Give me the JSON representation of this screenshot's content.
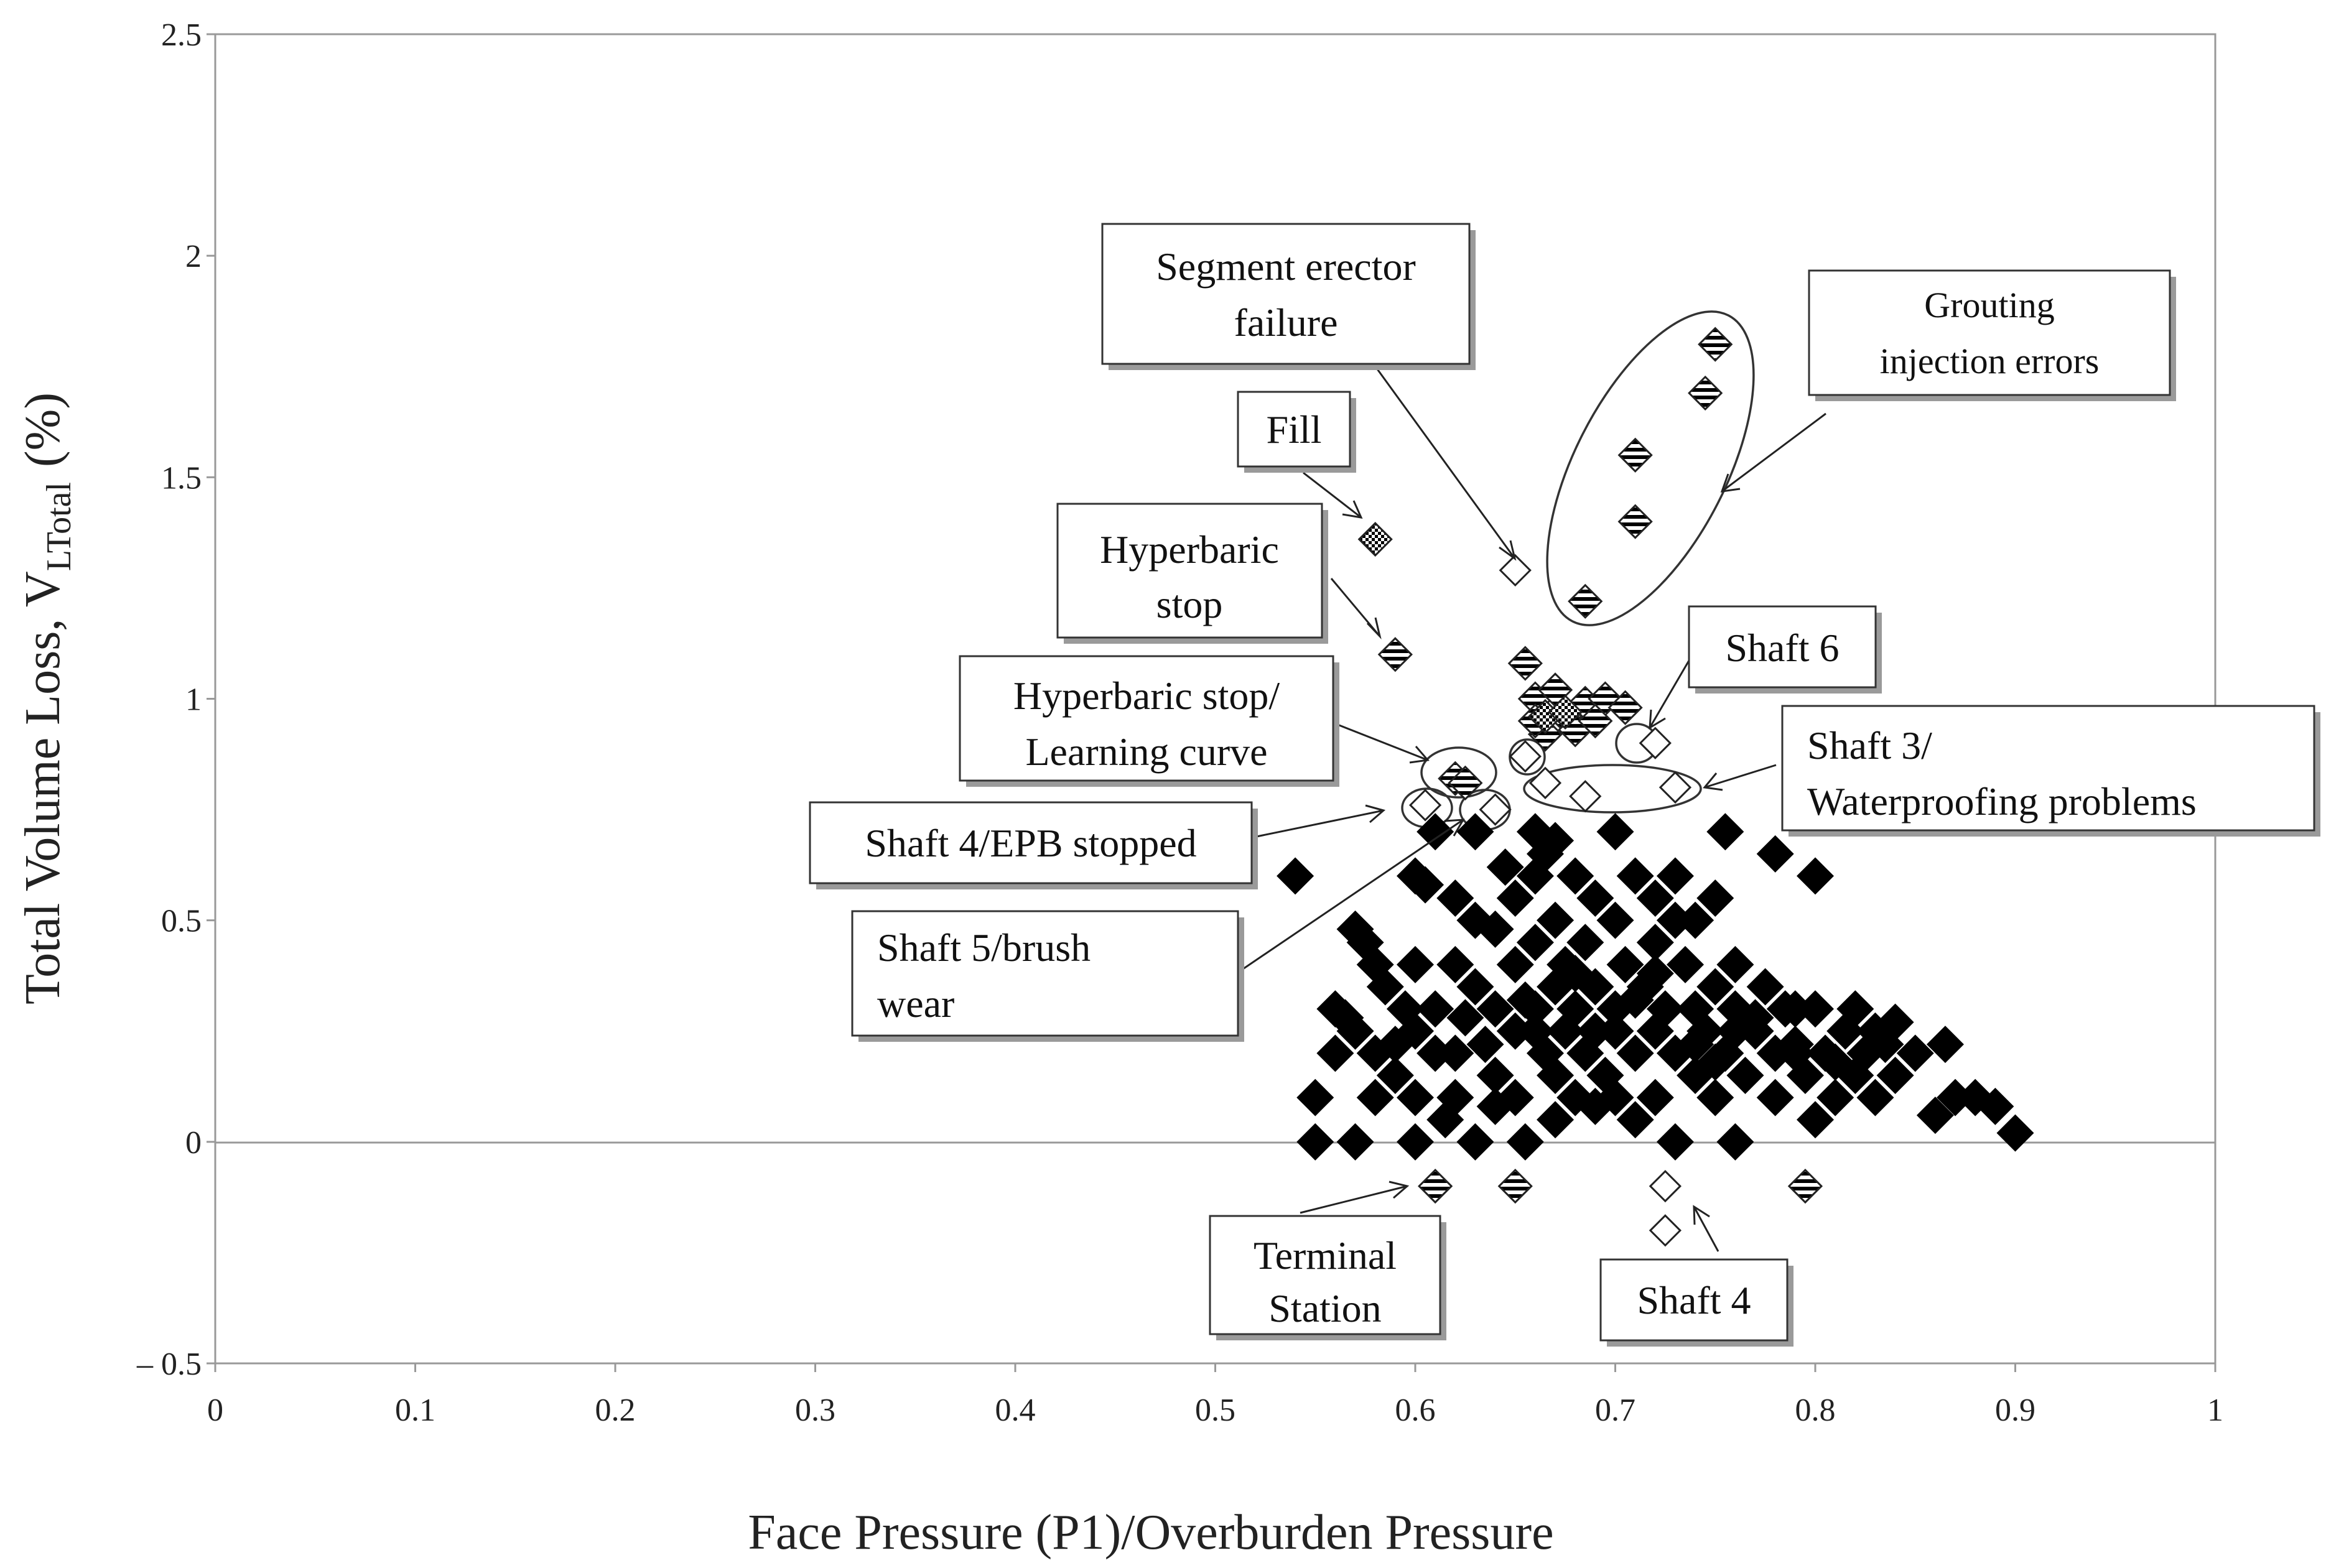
{
  "chart_data": {
    "type": "scatter",
    "xlabel": "Face Pressure (P1)/Overburden Pressure",
    "ylabel_main": "Total Volume Loss, V",
    "ylabel_sub": "LTotal",
    "ylabel_unit": "(%)",
    "xlim": [
      0,
      1
    ],
    "ylim": [
      -0.5,
      2.5
    ],
    "x_ticks": [
      "0",
      "0.1",
      "0.2",
      "0.3",
      "0.4",
      "0.5",
      "0.6",
      "0.7",
      "0.8",
      "0.9",
      "1"
    ],
    "y_ticks": [
      "2.5",
      "2",
      "1.5",
      "1",
      "0.5",
      "0",
      "– 0.5"
    ],
    "y_tick_values": [
      2.5,
      2,
      1.5,
      1,
      0.5,
      0,
      -0.5
    ],
    "grid": false,
    "colors": {
      "filled": "#000000",
      "outline": "#222222"
    },
    "series": [
      {
        "marker": "filled-diamond",
        "points": [
          [
            0.54,
            0.6
          ],
          [
            0.55,
            0.1
          ],
          [
            0.55,
            0.0
          ],
          [
            0.56,
            0.3
          ],
          [
            0.565,
            0.28
          ],
          [
            0.57,
            0.25
          ],
          [
            0.57,
            0.48
          ],
          [
            0.575,
            0.45
          ],
          [
            0.58,
            0.4
          ],
          [
            0.58,
            0.2
          ],
          [
            0.58,
            0.1
          ],
          [
            0.57,
            0.0
          ],
          [
            0.585,
            0.35
          ],
          [
            0.59,
            0.15
          ],
          [
            0.59,
            0.22
          ],
          [
            0.595,
            0.3
          ],
          [
            0.6,
            0.25
          ],
          [
            0.6,
            0.6
          ],
          [
            0.6,
            0.1
          ],
          [
            0.605,
            0.58
          ],
          [
            0.61,
            0.7
          ],
          [
            0.61,
            0.2
          ],
          [
            0.61,
            0.3
          ],
          [
            0.6,
            0.0
          ],
          [
            0.615,
            0.05
          ],
          [
            0.62,
            0.4
          ],
          [
            0.62,
            0.2
          ],
          [
            0.62,
            0.1
          ],
          [
            0.625,
            0.28
          ],
          [
            0.63,
            0.7
          ],
          [
            0.63,
            0.5
          ],
          [
            0.63,
            0.35
          ],
          [
            0.635,
            0.22
          ],
          [
            0.64,
            0.48
          ],
          [
            0.64,
            0.3
          ],
          [
            0.64,
            0.15
          ],
          [
            0.63,
            0.0
          ],
          [
            0.645,
            0.62
          ],
          [
            0.65,
            0.55
          ],
          [
            0.65,
            0.4
          ],
          [
            0.65,
            0.25
          ],
          [
            0.65,
            0.1
          ],
          [
            0.655,
            0.32
          ],
          [
            0.655,
            0.0
          ],
          [
            0.66,
            0.7
          ],
          [
            0.66,
            0.6
          ],
          [
            0.66,
            0.45
          ],
          [
            0.66,
            0.3
          ],
          [
            0.665,
            0.2
          ],
          [
            0.665,
            0.65
          ],
          [
            0.67,
            0.68
          ],
          [
            0.67,
            0.5
          ],
          [
            0.67,
            0.35
          ],
          [
            0.67,
            0.15
          ],
          [
            0.675,
            0.4
          ],
          [
            0.675,
            0.25
          ],
          [
            0.68,
            0.6
          ],
          [
            0.68,
            0.3
          ],
          [
            0.68,
            0.1
          ],
          [
            0.685,
            0.45
          ],
          [
            0.685,
            0.2
          ],
          [
            0.69,
            0.55
          ],
          [
            0.69,
            0.35
          ],
          [
            0.69,
            0.25
          ],
          [
            0.695,
            0.15
          ],
          [
            0.7,
            0.7
          ],
          [
            0.7,
            0.5
          ],
          [
            0.7,
            0.3
          ],
          [
            0.7,
            0.1
          ],
          [
            0.705,
            0.4
          ],
          [
            0.71,
            0.6
          ],
          [
            0.71,
            0.2
          ],
          [
            0.71,
            0.05
          ],
          [
            0.715,
            0.35
          ],
          [
            0.72,
            0.55
          ],
          [
            0.72,
            0.45
          ],
          [
            0.72,
            0.25
          ],
          [
            0.72,
            0.1
          ],
          [
            0.725,
            0.3
          ],
          [
            0.73,
            0.6
          ],
          [
            0.73,
            0.2
          ],
          [
            0.73,
            0.0
          ],
          [
            0.735,
            0.4
          ],
          [
            0.74,
            0.5
          ],
          [
            0.74,
            0.3
          ],
          [
            0.74,
            0.15
          ],
          [
            0.745,
            0.25
          ],
          [
            0.75,
            0.35
          ],
          [
            0.75,
            0.1
          ],
          [
            0.755,
            0.7
          ],
          [
            0.755,
            0.2
          ],
          [
            0.76,
            0.4
          ],
          [
            0.76,
            0.3
          ],
          [
            0.76,
            0.0
          ],
          [
            0.765,
            0.15
          ],
          [
            0.77,
            0.25
          ],
          [
            0.775,
            0.35
          ],
          [
            0.78,
            0.65
          ],
          [
            0.78,
            0.2
          ],
          [
            0.78,
            0.1
          ],
          [
            0.785,
            0.3
          ],
          [
            0.79,
            0.22
          ],
          [
            0.795,
            0.15
          ],
          [
            0.8,
            0.6
          ],
          [
            0.8,
            0.3
          ],
          [
            0.8,
            0.05
          ],
          [
            0.805,
            0.2
          ],
          [
            0.81,
            0.1
          ],
          [
            0.815,
            0.25
          ],
          [
            0.82,
            0.3
          ],
          [
            0.82,
            0.15
          ],
          [
            0.825,
            0.2
          ],
          [
            0.83,
            0.1
          ],
          [
            0.835,
            0.22
          ],
          [
            0.84,
            0.27
          ],
          [
            0.84,
            0.15
          ],
          [
            0.85,
            0.2
          ],
          [
            0.86,
            0.06
          ],
          [
            0.865,
            0.22
          ],
          [
            0.87,
            0.1
          ],
          [
            0.88,
            0.1
          ],
          [
            0.89,
            0.08
          ],
          [
            0.9,
            0.02
          ],
          [
            0.56,
            0.2
          ],
          [
            0.6,
            0.4
          ],
          [
            0.62,
            0.55
          ],
          [
            0.64,
            0.08
          ],
          [
            0.67,
            0.05
          ],
          [
            0.69,
            0.08
          ],
          [
            0.73,
            0.5
          ],
          [
            0.75,
            0.55
          ],
          [
            0.77,
            0.28
          ],
          [
            0.79,
            0.3
          ],
          [
            0.81,
            0.18
          ],
          [
            0.83,
            0.25
          ],
          [
            0.68,
            0.38
          ],
          [
            0.71,
            0.32
          ],
          [
            0.74,
            0.22
          ],
          [
            0.76,
            0.25
          ],
          [
            0.7,
            0.25
          ],
          [
            0.66,
            0.25
          ],
          [
            0.72,
            0.38
          ],
          [
            0.75,
            0.18
          ],
          [
            0.79,
            0.2
          ]
        ]
      },
      {
        "marker": "hatched-diamond",
        "points": [
          [
            0.75,
            1.8
          ],
          [
            0.745,
            1.69
          ],
          [
            0.71,
            1.55
          ],
          [
            0.71,
            1.4
          ],
          [
            0.685,
            1.22
          ],
          [
            0.59,
            1.1
          ],
          [
            0.655,
            1.08
          ],
          [
            0.66,
            1.0
          ],
          [
            0.67,
            1.02
          ],
          [
            0.675,
            0.96
          ],
          [
            0.685,
            0.99
          ],
          [
            0.695,
            1.0
          ],
          [
            0.705,
            0.98
          ],
          [
            0.665,
            0.92
          ],
          [
            0.68,
            0.93
          ],
          [
            0.69,
            0.95
          ],
          [
            0.62,
            0.82
          ],
          [
            0.625,
            0.81
          ],
          [
            0.795,
            -0.1
          ],
          [
            0.61,
            -0.1
          ],
          [
            0.65,
            -0.1
          ],
          [
            0.66,
            0.95
          ]
        ]
      },
      {
        "marker": "checker-diamond",
        "points": [
          [
            0.58,
            1.36
          ],
          [
            0.665,
            0.96
          ],
          [
            0.675,
            0.97
          ]
        ]
      },
      {
        "marker": "open-diamond",
        "points": [
          [
            0.65,
            1.29
          ],
          [
            0.72,
            0.9
          ],
          [
            0.655,
            0.87
          ],
          [
            0.665,
            0.81
          ],
          [
            0.685,
            0.78
          ],
          [
            0.73,
            0.8
          ],
          [
            0.605,
            0.76
          ],
          [
            0.64,
            0.75
          ],
          [
            0.725,
            -0.1
          ],
          [
            0.725,
            -0.2
          ]
        ]
      }
    ],
    "annotations": [
      {
        "name": "segment-erector-failure",
        "lines": [
          "Segment erector",
          "failure"
        ]
      },
      {
        "name": "grouting-injection-errors",
        "lines": [
          "Grouting",
          "injection errors"
        ]
      },
      {
        "name": "fill",
        "lines": [
          "Fill"
        ]
      },
      {
        "name": "hyperbaric-stop",
        "lines": [
          "Hyperbaric",
          "stop"
        ]
      },
      {
        "name": "shaft-6",
        "lines": [
          "Shaft 6"
        ]
      },
      {
        "name": "hyperbaric-stop-learning-curve",
        "lines": [
          "Hyperbaric stop/",
          "Learning  curve"
        ]
      },
      {
        "name": "shaft-3-waterproofing",
        "lines": [
          "Shaft 3/",
          "Waterproofing problems"
        ]
      },
      {
        "name": "shaft-4-epb-stopped",
        "lines": [
          "Shaft 4/EPB stopped"
        ]
      },
      {
        "name": "shaft-5-brush-wear",
        "lines": [
          "Shaft 5/brush",
          "wear"
        ]
      },
      {
        "name": "terminal-station",
        "lines": [
          "Terminal",
          "Station"
        ]
      },
      {
        "name": "shaft-4",
        "lines": [
          "Shaft 4"
        ]
      }
    ]
  }
}
